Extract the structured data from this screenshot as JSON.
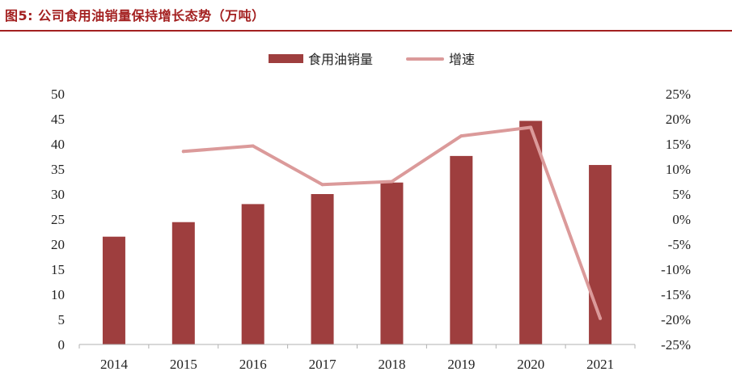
{
  "figure": {
    "title": "图5:   公司食用油销量保持增长态势（万吨）"
  },
  "colors": {
    "accent": "#a32020",
    "bar": "#9e3e3e",
    "line": "#db9a9a",
    "axis": "#b0b0b0"
  },
  "chart_data": {
    "type": "bar",
    "categories": [
      "2014",
      "2015",
      "2016",
      "2017",
      "2018",
      "2019",
      "2020",
      "2021"
    ],
    "series": [
      {
        "name": "食用油销量",
        "type": "bar",
        "axis": "left",
        "values": [
          21.5,
          24.4,
          28.0,
          30.0,
          32.3,
          37.6,
          44.6,
          35.8
        ]
      },
      {
        "name": "增速",
        "type": "line",
        "axis": "right",
        "values": [
          null,
          13.5,
          14.6,
          6.9,
          7.5,
          16.6,
          18.3,
          -19.8
        ]
      }
    ],
    "y_left": {
      "min": 0,
      "max": 50,
      "ticks": [
        "0",
        "5",
        "10",
        "15",
        "20",
        "25",
        "30",
        "35",
        "40",
        "45",
        "50"
      ]
    },
    "y_right": {
      "min": -25,
      "max": 25,
      "ticks": [
        "-25%",
        "-20%",
        "-15%",
        "-10%",
        "-5%",
        "0%",
        "5%",
        "10%",
        "15%",
        "20%",
        "25%"
      ]
    },
    "legend": {
      "position": "top-center"
    },
    "grid": false
  }
}
